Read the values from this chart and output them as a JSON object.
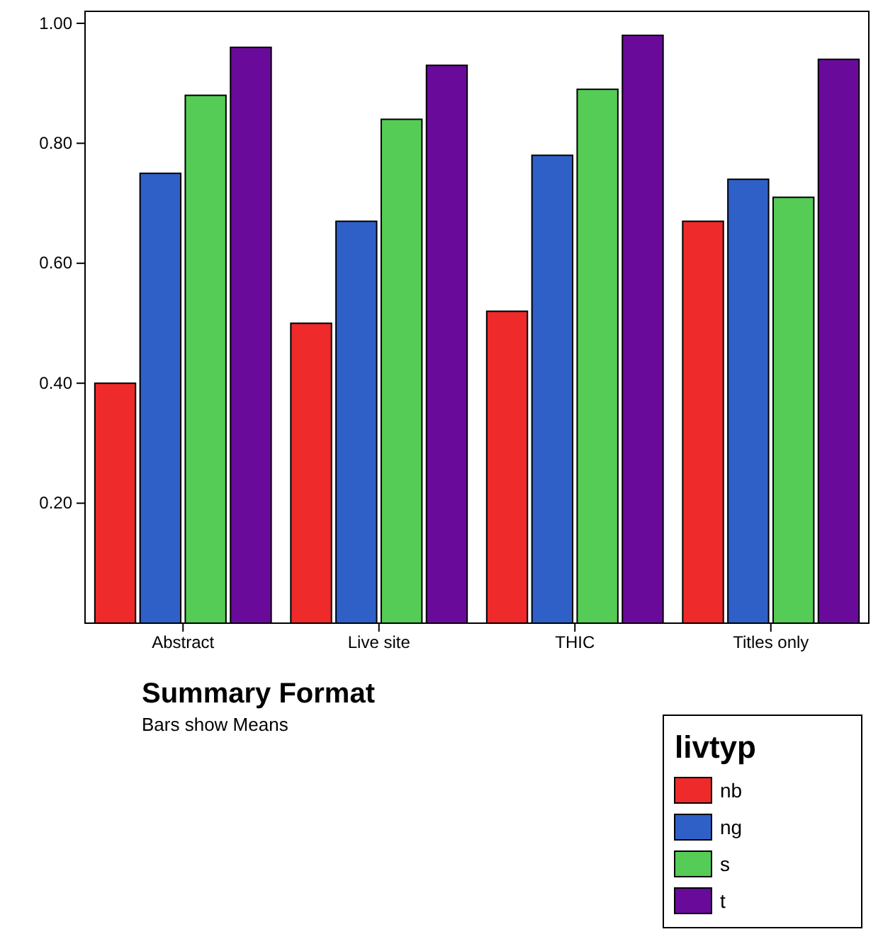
{
  "chart_data": {
    "type": "bar",
    "xlabel": "Summary Format",
    "legend_title": "livtyp",
    "annotations": [
      "Bars show Means"
    ],
    "categories": [
      "Abstract",
      "Live site",
      "THIC",
      "Titles only"
    ],
    "series": [
      {
        "name": "nb",
        "color": "#ee2a2a",
        "values": [
          0.4,
          0.5,
          0.52,
          0.67
        ]
      },
      {
        "name": "ng",
        "color": "#2e60c8",
        "values": [
          0.75,
          0.67,
          0.78,
          0.74
        ]
      },
      {
        "name": "s",
        "color": "#55cc55",
        "values": [
          0.88,
          0.84,
          0.89,
          0.71
        ]
      },
      {
        "name": "t",
        "color": "#6a0a9a",
        "values": [
          0.96,
          0.93,
          0.98,
          0.94
        ]
      }
    ],
    "ylim": [
      0,
      1.02
    ],
    "yticks": [
      {
        "value": 0.2,
        "label": "0.20"
      },
      {
        "value": 0.4,
        "label": "0.40"
      },
      {
        "value": 0.6,
        "label": "0.60"
      },
      {
        "value": 0.8,
        "label": "0.80"
      },
      {
        "value": 1.0,
        "label": "1.00"
      }
    ],
    "grid": false,
    "legend": "bottom right"
  }
}
